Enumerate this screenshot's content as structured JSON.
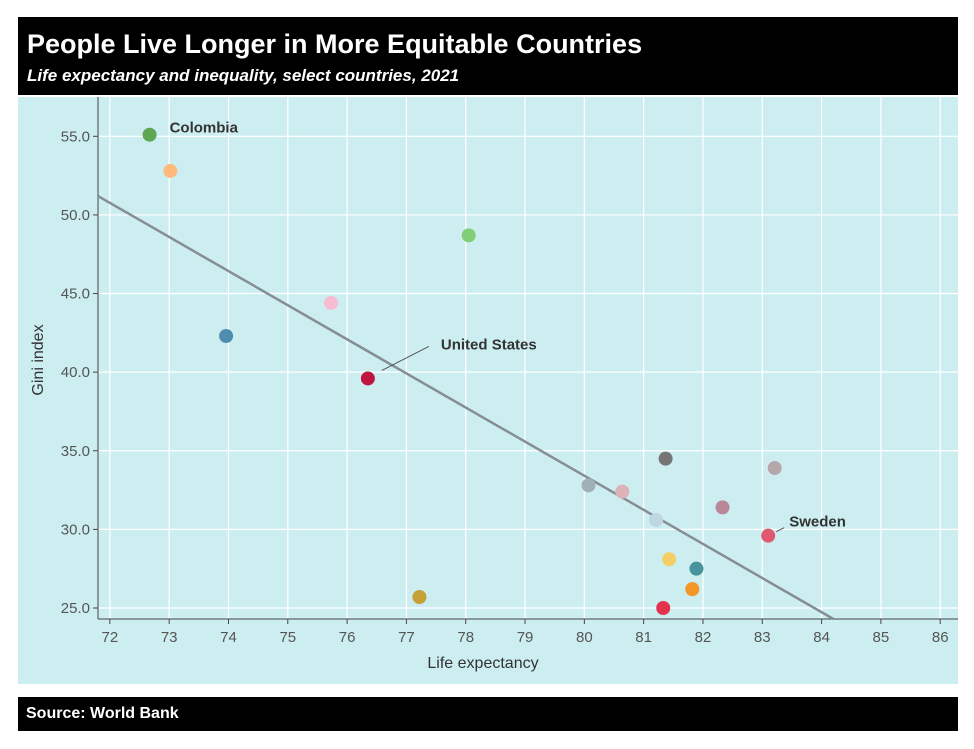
{
  "header": {
    "title": "People Live Longer in More Equitable Countries",
    "subtitle": "Life expectancy and inequality, select countries, 2021"
  },
  "footer": {
    "source": "Source: World Bank"
  },
  "colors": {
    "panel_bg": "#cdeef0",
    "grid": "#ffffff",
    "trend": "#868e93",
    "header_bg": "#000000"
  },
  "chart_data": {
    "type": "scatter",
    "xlabel": "Life expectancy",
    "ylabel": "Gini index",
    "xlim": [
      71.8,
      86.3
    ],
    "ylim": [
      24.3,
      57.5
    ],
    "xticks": [
      72,
      73,
      74,
      75,
      76,
      77,
      78,
      79,
      80,
      81,
      82,
      83,
      84,
      85,
      86
    ],
    "yticks": [
      25.0,
      30.0,
      35.0,
      40.0,
      45.0,
      50.0,
      55.0
    ],
    "grid": true,
    "trendline": {
      "x": [
        71.8,
        84.2
      ],
      "y": [
        51.2,
        24.3
      ]
    },
    "points": [
      {
        "x": 72.67,
        "y": 55.1,
        "color": "#5fa653",
        "label": "Colombia"
      },
      {
        "x": 73.02,
        "y": 52.8,
        "color": "#ffb97c",
        "label": ""
      },
      {
        "x": 78.05,
        "y": 48.7,
        "color": "#80cf77",
        "label": ""
      },
      {
        "x": 75.73,
        "y": 44.4,
        "color": "#f7bcd0",
        "label": ""
      },
      {
        "x": 73.96,
        "y": 42.3,
        "color": "#4e8db0",
        "label": ""
      },
      {
        "x": 76.35,
        "y": 39.6,
        "color": "#c0153f",
        "label": "United States"
      },
      {
        "x": 81.37,
        "y": 34.5,
        "color": "#757575",
        "label": ""
      },
      {
        "x": 83.21,
        "y": 33.9,
        "color": "#b6a8aa",
        "label": ""
      },
      {
        "x": 80.07,
        "y": 32.8,
        "color": "#9fb0b6",
        "label": ""
      },
      {
        "x": 80.64,
        "y": 32.4,
        "color": "#dcb1b7",
        "label": ""
      },
      {
        "x": 81.21,
        "y": 30.6,
        "color": "#bed7e1",
        "label": ""
      },
      {
        "x": 82.33,
        "y": 31.4,
        "color": "#b8879a",
        "label": ""
      },
      {
        "x": 83.1,
        "y": 29.6,
        "color": "#df5a71",
        "label": "Sweden"
      },
      {
        "x": 81.43,
        "y": 28.1,
        "color": "#f4cf66",
        "label": ""
      },
      {
        "x": 81.89,
        "y": 27.5,
        "color": "#47939e",
        "label": ""
      },
      {
        "x": 77.22,
        "y": 25.7,
        "color": "#c4a035",
        "label": ""
      },
      {
        "x": 81.82,
        "y": 26.2,
        "color": "#f39527",
        "label": ""
      },
      {
        "x": 81.33,
        "y": 25.0,
        "color": "#e2344d",
        "label": ""
      }
    ]
  }
}
